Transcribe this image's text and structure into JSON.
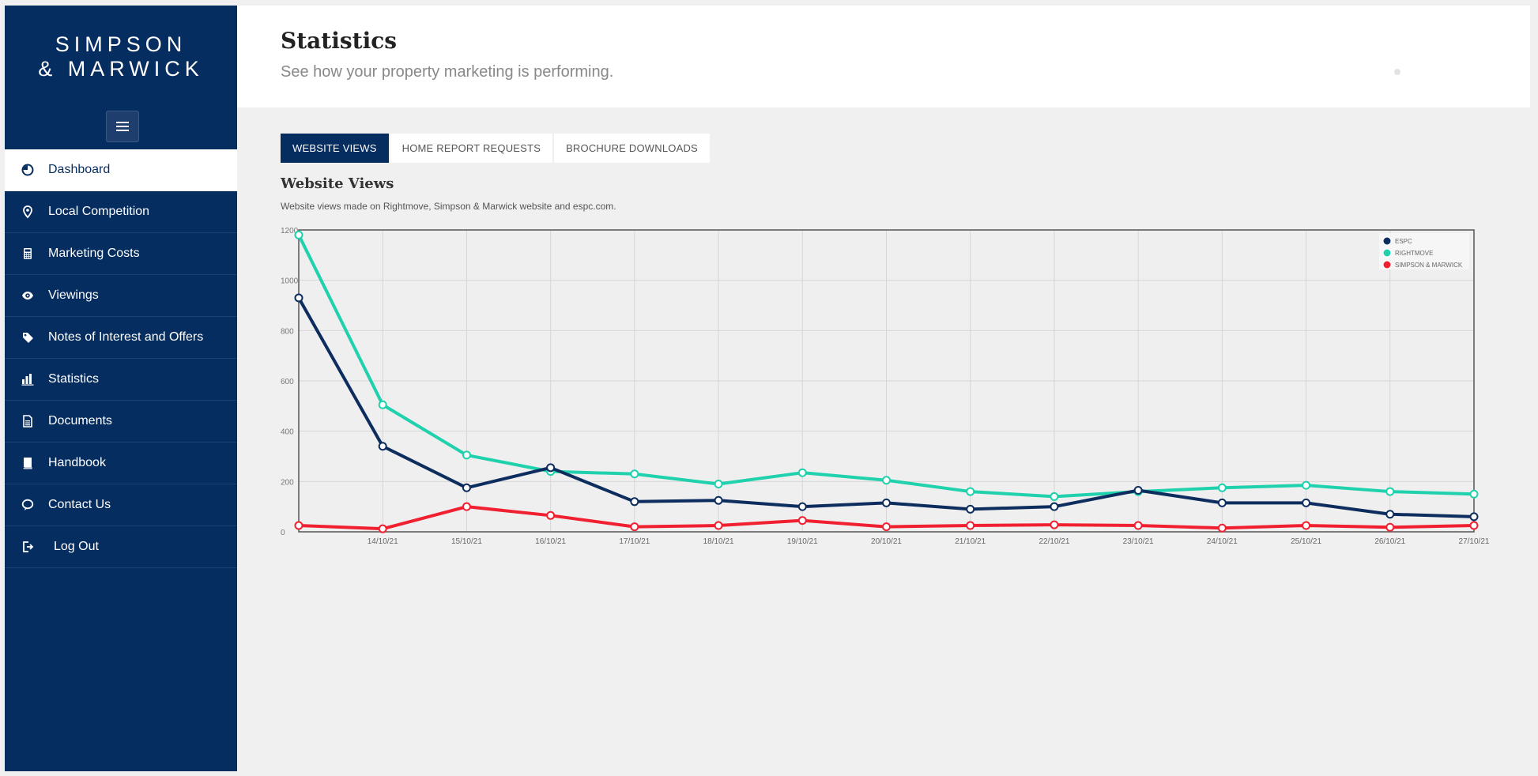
{
  "brand": {
    "line1": "SIMPSON",
    "line2": "& MARWICK"
  },
  "sidebar": {
    "items": [
      {
        "label": "Dashboard",
        "icon": "dashboard-icon",
        "active": true
      },
      {
        "label": "Local Competition",
        "icon": "map-pin-icon"
      },
      {
        "label": "Marketing Costs",
        "icon": "calculator-icon"
      },
      {
        "label": "Viewings",
        "icon": "eye-icon"
      },
      {
        "label": "Notes of Interest and Offers",
        "icon": "tag-icon"
      },
      {
        "label": "Statistics",
        "icon": "bar-chart-icon"
      },
      {
        "label": "Documents",
        "icon": "document-icon"
      },
      {
        "label": "Handbook",
        "icon": "book-icon"
      },
      {
        "label": "Contact Us",
        "icon": "speech-bubble-icon"
      },
      {
        "label": "Log Out",
        "icon": "logout-icon"
      }
    ]
  },
  "header": {
    "title": "Statistics",
    "subtitle": "See how your property marketing is performing."
  },
  "tabs": [
    {
      "label": "WEBSITE VIEWS",
      "active": true
    },
    {
      "label": "HOME REPORT REQUESTS"
    },
    {
      "label": "BROCHURE DOWNLOADS"
    }
  ],
  "section": {
    "title": "Website Views",
    "description": "Website views made on Rightmove, Simpson & Marwick website and espc.com."
  },
  "colors": {
    "navy": "#062d5f",
    "espc": "#0d2d5e",
    "rightmove": "#1fd1ac",
    "simpson": "#f02030"
  },
  "chart_data": {
    "type": "line",
    "xlim": [
      "13/10/21",
      "27/10/21"
    ],
    "ylim": [
      0,
      1200
    ],
    "yticks": [
      0,
      200,
      400,
      600,
      800,
      1000,
      1200
    ],
    "xtick_labels": [
      "14/10/21",
      "15/10/21",
      "16/10/21",
      "17/10/21",
      "18/10/21",
      "19/10/21",
      "20/10/21",
      "21/10/21",
      "22/10/21",
      "23/10/21",
      "24/10/21",
      "25/10/21",
      "26/10/21",
      "27/10/21"
    ],
    "grid": true,
    "legend": "top-right",
    "series": [
      {
        "name": "ESPC",
        "color": "#0d2d5e",
        "points": [
          [
            "13/10/21",
            930
          ],
          [
            "14/10/21",
            340
          ],
          [
            "15/10/21",
            175
          ],
          [
            "16/10/21",
            255
          ],
          [
            "17/10/21",
            120
          ],
          [
            "18/10/21",
            125
          ],
          [
            "19/10/21",
            100
          ],
          [
            "20/10/21",
            115
          ],
          [
            "21/10/21",
            90
          ],
          [
            "22/10/21",
            100
          ],
          [
            "23/10/21",
            165
          ],
          [
            "24/10/21",
            115
          ],
          [
            "25/10/21",
            115
          ],
          [
            "26/10/21",
            70
          ],
          [
            "27/10/21",
            60
          ]
        ]
      },
      {
        "name": "RIGHTMOVE",
        "color": "#1fd1ac",
        "points": [
          [
            "13/10/21",
            1180
          ],
          [
            "14/10/21",
            505
          ],
          [
            "15/10/21",
            305
          ],
          [
            "16/10/21",
            240
          ],
          [
            "17/10/21",
            230
          ],
          [
            "18/10/21",
            190
          ],
          [
            "19/10/21",
            235
          ],
          [
            "20/10/21",
            205
          ],
          [
            "21/10/21",
            160
          ],
          [
            "22/10/21",
            140
          ],
          [
            "23/10/21",
            160
          ],
          [
            "24/10/21",
            175
          ],
          [
            "25/10/21",
            185
          ],
          [
            "26/10/21",
            160
          ],
          [
            "27/10/21",
            150
          ]
        ]
      },
      {
        "name": "SIMPSON & MARWICK",
        "color": "#f02030",
        "points": [
          [
            "13/10/21",
            25
          ],
          [
            "14/10/21",
            12
          ],
          [
            "15/10/21",
            100
          ],
          [
            "16/10/21",
            65
          ],
          [
            "17/10/21",
            20
          ],
          [
            "18/10/21",
            25
          ],
          [
            "19/10/21",
            45
          ],
          [
            "20/10/21",
            20
          ],
          [
            "21/10/21",
            25
          ],
          [
            "22/10/21",
            28
          ],
          [
            "23/10/21",
            25
          ],
          [
            "24/10/21",
            15
          ],
          [
            "25/10/21",
            25
          ],
          [
            "26/10/21",
            18
          ],
          [
            "27/10/21",
            25
          ]
        ]
      }
    ]
  }
}
